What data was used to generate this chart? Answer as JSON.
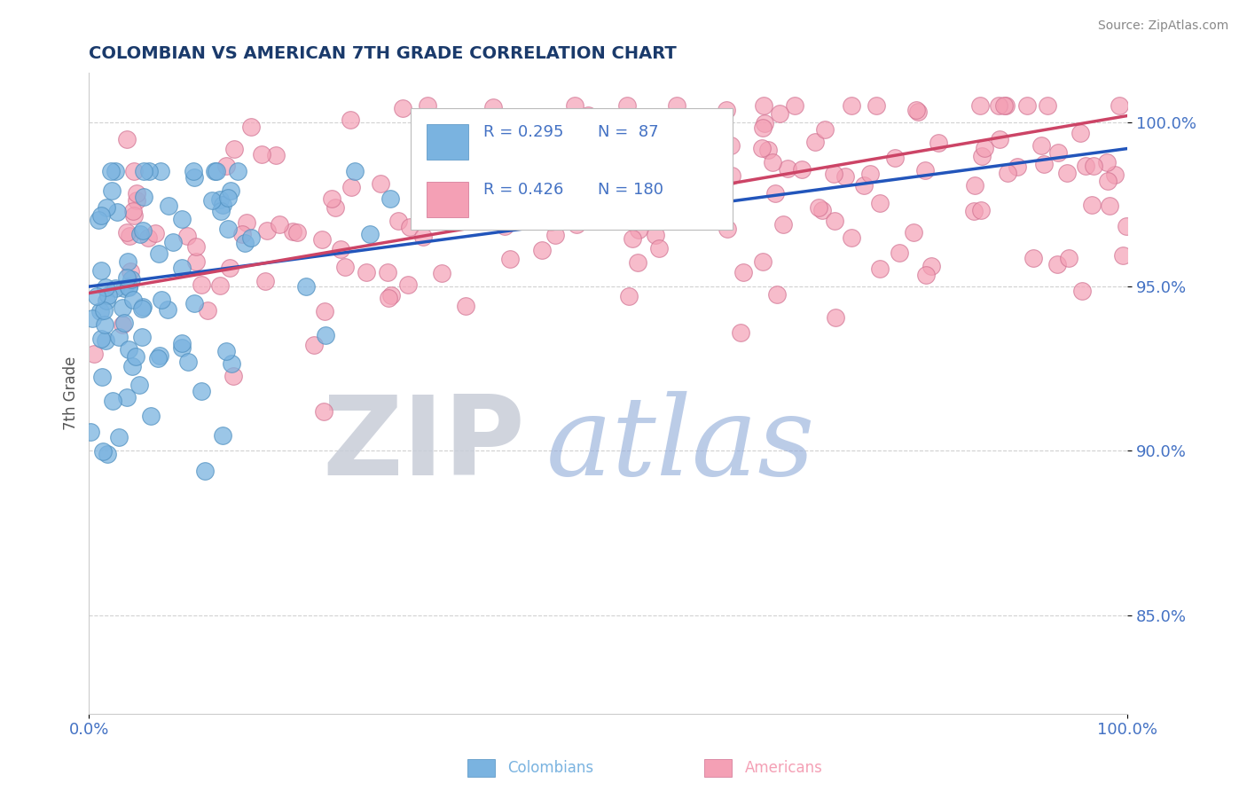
{
  "title": "COLOMBIAN VS AMERICAN 7TH GRADE CORRELATION CHART",
  "source": "Source: ZipAtlas.com",
  "ylabel": "7th Grade",
  "xlim": [
    0,
    1
  ],
  "ylim": [
    0.82,
    1.015
  ],
  "yticks": [
    0.85,
    0.9,
    0.95,
    1.0
  ],
  "ytick_labels": [
    "85.0%",
    "90.0%",
    "95.0%",
    "100.0%"
  ],
  "xticks": [
    0.0,
    1.0
  ],
  "xtick_labels": [
    "0.0%",
    "100.0%"
  ],
  "title_color": "#1a3a6b",
  "axis_label_color": "#555555",
  "tick_color": "#4472c4",
  "source_color": "#888888",
  "grid_color": "#cccccc",
  "background": "#ffffff",
  "colombian_color": "#7ab3e0",
  "colombian_edge": "#5090c0",
  "american_color": "#f4a0b5",
  "american_edge": "#d07090",
  "colombian_line_color": "#2255bb",
  "american_line_color": "#cc4466",
  "legend_R_colombian": "0.295",
  "legend_N_colombian": "87",
  "legend_R_american": "0.426",
  "legend_N_american": "180",
  "legend_color": "#4472c4",
  "zip_color": "#c8cdd8",
  "atlas_color": "#8faad8"
}
